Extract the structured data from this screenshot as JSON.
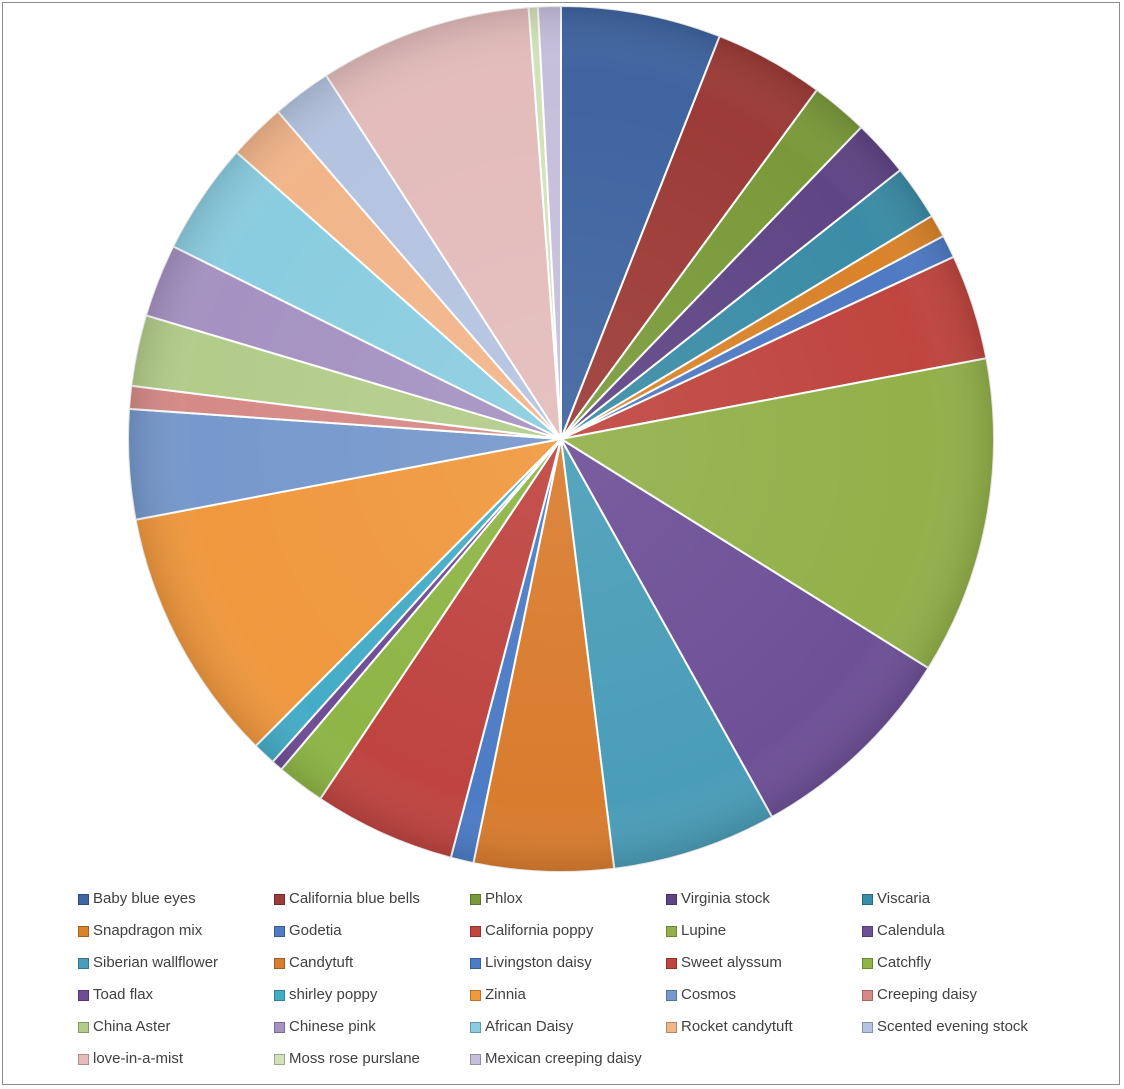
{
  "chart_data": {
    "type": "pie",
    "title": "",
    "start_angle_deg": 0,
    "direction": "clockwise",
    "legend_position": "bottom",
    "series": [
      {
        "name": "Baby blue eyes",
        "value": 7.0,
        "color": "#3f64a0"
      },
      {
        "name": "California blue bells",
        "value": 4.8,
        "color": "#9c3b37"
      },
      {
        "name": "Phlox",
        "value": 2.5,
        "color": "#7a9a3a"
      },
      {
        "name": "Virginia stock",
        "value": 2.5,
        "color": "#5f4585"
      },
      {
        "name": "Viscaria",
        "value": 2.4,
        "color": "#3b8ca6"
      },
      {
        "name": "Snapdragon mix",
        "value": 1.0,
        "color": "#d9832a"
      },
      {
        "name": "Godetia",
        "value": 1.0,
        "color": "#4f7ac4"
      },
      {
        "name": "California poppy",
        "value": 4.6,
        "color": "#c0453f"
      },
      {
        "name": "Lupine",
        "value": 13.9,
        "color": "#93b04a"
      },
      {
        "name": "Calendula",
        "value": 9.4,
        "color": "#6e5097"
      },
      {
        "name": "Siberian wallflower",
        "value": 7.2,
        "color": "#4a9db8"
      },
      {
        "name": "Candytuft",
        "value": 6.1,
        "color": "#d97c2e"
      },
      {
        "name": "Livingston daisy",
        "value": 1.0,
        "color": "#4d7cc6"
      },
      {
        "name": "Sweet alyssum",
        "value": 6.2,
        "color": "#bf4440"
      },
      {
        "name": "Catchfly",
        "value": 2.1,
        "color": "#8eb546"
      },
      {
        "name": "Toad flax",
        "value": 0.5,
        "color": "#6f4d96"
      },
      {
        "name": "shirley poppy",
        "value": 1.0,
        "color": "#45acc7"
      },
      {
        "name": "Zinnia",
        "value": 11.2,
        "color": "#f0983e"
      },
      {
        "name": "Cosmos",
        "value": 4.8,
        "color": "#7698cc"
      },
      {
        "name": "Creeping daisy",
        "value": 1.0,
        "color": "#d68a87"
      },
      {
        "name": "China Aster",
        "value": 3.1,
        "color": "#b3cc8a"
      },
      {
        "name": "Chinese pink",
        "value": 3.2,
        "color": "#a592c2"
      },
      {
        "name": "African Daisy",
        "value": 4.9,
        "color": "#8acde0"
      },
      {
        "name": "Rocket candytuft",
        "value": 2.5,
        "color": "#f2b58a"
      },
      {
        "name": "Scented evening stock",
        "value": 2.6,
        "color": "#b4c3e0"
      },
      {
        "name": "love-in-a-mist",
        "value": 9.3,
        "color": "#e3bcbb"
      },
      {
        "name": "Moss rose purslane",
        "value": 0.4,
        "color": "#d2e2b8"
      },
      {
        "name": "Mexican creeping daisy",
        "value": 1.0,
        "color": "#c6bfdc"
      }
    ]
  }
}
